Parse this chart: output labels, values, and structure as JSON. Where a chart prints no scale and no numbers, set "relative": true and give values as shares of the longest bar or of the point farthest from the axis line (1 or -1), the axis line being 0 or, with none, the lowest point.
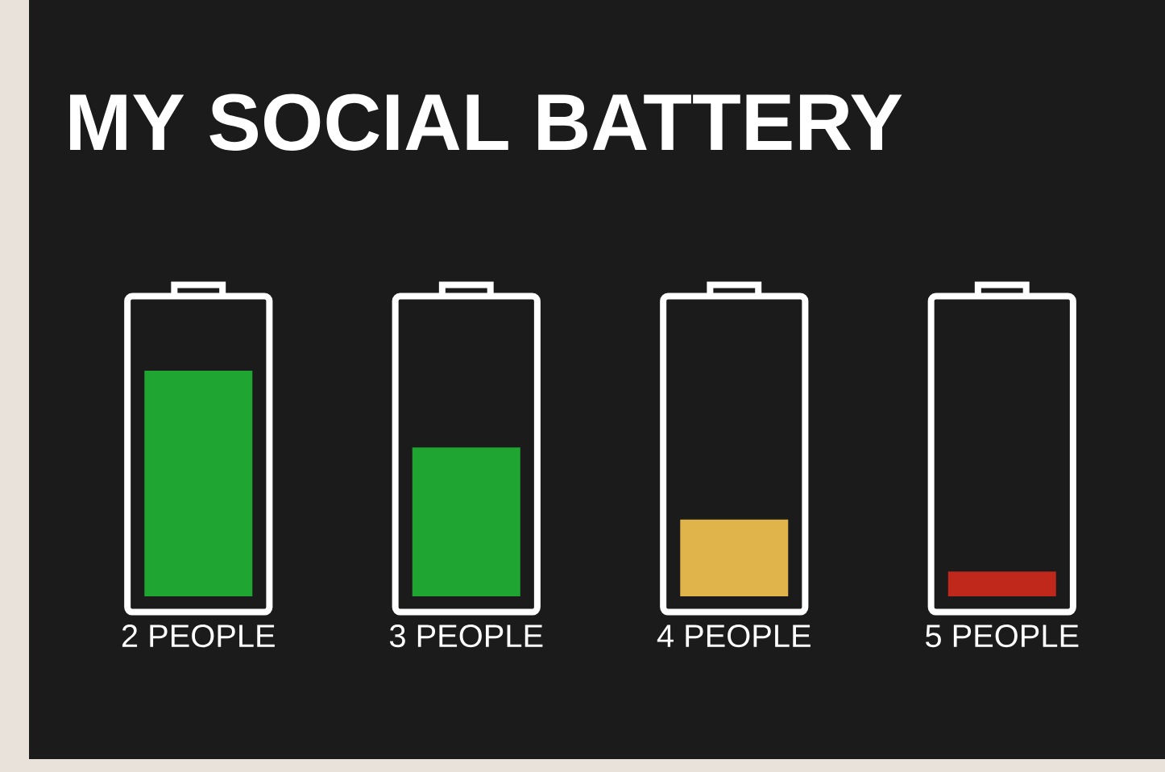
{
  "chart_data": {
    "type": "bar",
    "title": "MY SOCIAL BATTERY",
    "relative": true,
    "categories": [
      "2 PEOPLE",
      "3 PEOPLE",
      "4 PEOPLE",
      "5 PEOPLE"
    ],
    "values": [
      1,
      0.66,
      0.34,
      0.11
    ],
    "colors": [
      "#1fa531",
      "#1fa531",
      "#e0b44a",
      "#c0281c"
    ]
  }
}
